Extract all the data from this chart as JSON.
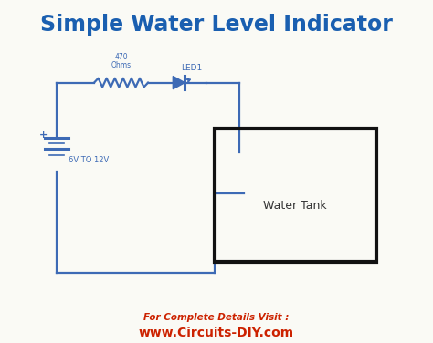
{
  "title": "Simple Water Level Indicator",
  "title_color": "#1a5fb0",
  "title_fontsize": 17,
  "title_fontweight": "bold",
  "circuit_color": "#3d6ab5",
  "tank_color": "#111111",
  "footer_line1": "For Complete Details Visit :",
  "footer_line2": "www.Circuits-DIY.com",
  "footer_color": "#cc2200",
  "bg_color": "#fafaf5",
  "resistor_label": "470\nOhms",
  "led_label": "LED1",
  "battery_label": "6V TO 12V",
  "water_tank_label": "Water Tank",
  "xlim": [
    0,
    10
  ],
  "ylim": [
    0,
    10
  ],
  "batt_x": 1.15,
  "batt_y_center": 5.5,
  "batt_half_height": 0.5,
  "top_wire_y": 7.6,
  "res_x1": 2.05,
  "res_x2": 3.35,
  "led_x1": 3.95,
  "led_x2": 4.75,
  "right_wire_x": 5.55,
  "tank_left_x": 4.95,
  "tank_right_x": 8.85,
  "tank_top_y": 6.25,
  "tank_bottom_y": 2.35,
  "probe_bottom_y": 2.05,
  "probe_right_x": 4.95,
  "probe_step_y": 4.35,
  "probe_tip_x_end": 5.65,
  "tank_wire_inner_y": 5.55,
  "lw": 1.6
}
